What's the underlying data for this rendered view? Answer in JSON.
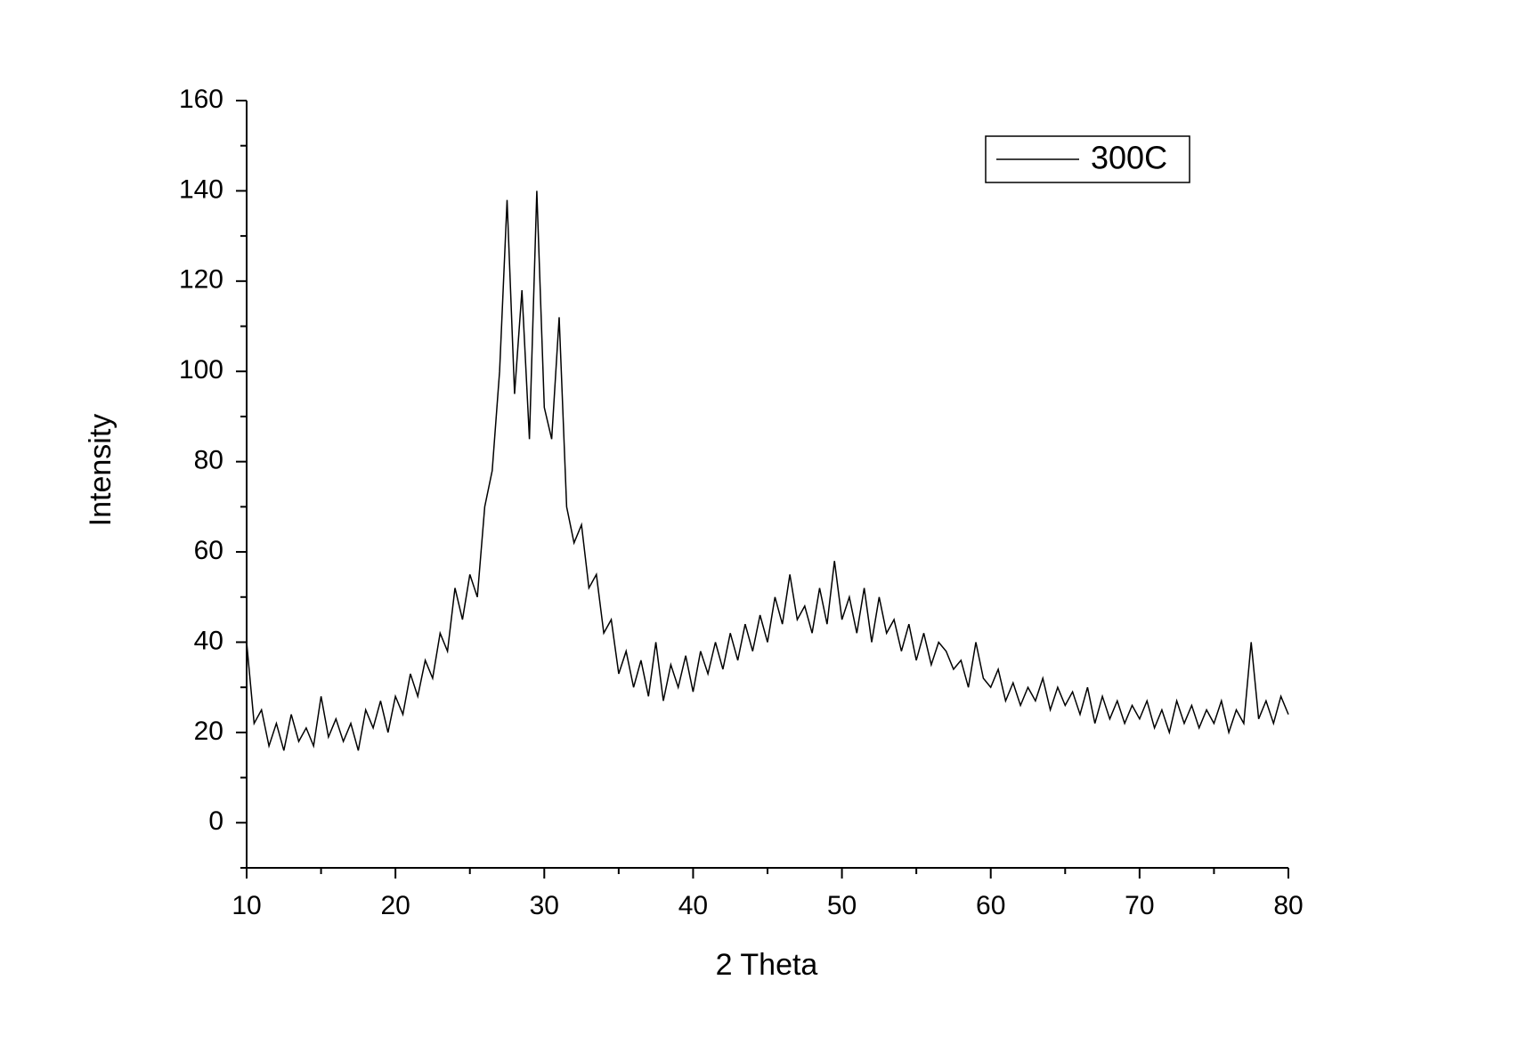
{
  "chart_data": {
    "type": "line",
    "xlabel": "2 Theta",
    "ylabel": "Intensity",
    "xlim": [
      10,
      80
    ],
    "ylim": [
      -10,
      160
    ],
    "xticks": [
      10,
      20,
      30,
      40,
      50,
      60,
      70,
      80
    ],
    "xminorticks": [
      15,
      25,
      35,
      45,
      55,
      65,
      75
    ],
    "yticks": [
      0,
      20,
      40,
      60,
      80,
      100,
      120,
      140,
      160
    ],
    "yminorticks": [
      -10,
      10,
      30,
      50,
      70,
      90,
      110,
      130,
      150
    ],
    "grid": false,
    "legend": "upper right",
    "x": [
      10,
      10.5,
      11,
      11.5,
      12,
      12.5,
      13,
      13.5,
      14,
      14.5,
      15,
      15.5,
      16,
      16.5,
      17,
      17.5,
      18,
      18.5,
      19,
      19.5,
      20,
      20.5,
      21,
      21.5,
      22,
      22.5,
      23,
      23.5,
      24,
      24.5,
      25,
      25.5,
      26,
      26.5,
      27,
      27.5,
      28,
      28.5,
      29,
      29.5,
      30,
      30.5,
      31,
      31.5,
      32,
      32.5,
      33,
      33.5,
      34,
      34.5,
      35,
      35.5,
      36,
      36.5,
      37,
      37.5,
      38,
      38.5,
      39,
      39.5,
      40,
      40.5,
      41,
      41.5,
      42,
      42.5,
      43,
      43.5,
      44,
      44.5,
      45,
      45.5,
      46,
      46.5,
      47,
      47.5,
      48,
      48.5,
      49,
      49.5,
      50,
      50.5,
      51,
      51.5,
      52,
      52.5,
      53,
      53.5,
      54,
      54.5,
      55,
      55.5,
      56,
      56.5,
      57,
      57.5,
      58,
      58.5,
      59,
      59.5,
      60,
      60.5,
      61,
      61.5,
      62,
      62.5,
      63,
      63.5,
      64,
      64.5,
      65,
      65.5,
      66,
      66.5,
      67,
      67.5,
      68,
      68.5,
      69,
      69.5,
      70,
      70.5,
      71,
      71.5,
      72,
      72.5,
      73,
      73.5,
      74,
      74.5,
      75,
      75.5,
      76,
      76.5,
      77,
      77.5,
      78,
      78.5,
      79,
      79.5,
      80
    ],
    "series": [
      {
        "name": "300C",
        "color": "#000000",
        "values": [
          40,
          22,
          25,
          17,
          22,
          16,
          24,
          18,
          21,
          17,
          28,
          19,
          23,
          18,
          22,
          16,
          25,
          21,
          27,
          20,
          28,
          24,
          33,
          28,
          36,
          32,
          42,
          38,
          52,
          45,
          55,
          50,
          70,
          78,
          100,
          138,
          95,
          118,
          85,
          140,
          92,
          85,
          112,
          70,
          62,
          66,
          52,
          55,
          42,
          45,
          33,
          38,
          30,
          36,
          28,
          40,
          27,
          35,
          30,
          37,
          29,
          38,
          33,
          40,
          34,
          42,
          36,
          44,
          38,
          46,
          40,
          50,
          44,
          55,
          45,
          48,
          42,
          52,
          44,
          58,
          45,
          50,
          42,
          52,
          40,
          50,
          42,
          45,
          38,
          44,
          36,
          42,
          35,
          40,
          38,
          34,
          36,
          30,
          40,
          32,
          30,
          34,
          27,
          31,
          26,
          30,
          27,
          32,
          25,
          30,
          26,
          29,
          24,
          30,
          22,
          28,
          23,
          27,
          22,
          26,
          23,
          27,
          21,
          25,
          20,
          27,
          22,
          26,
          21,
          25,
          22,
          27,
          20,
          25,
          22,
          40,
          23,
          27,
          22,
          28,
          24
        ]
      }
    ]
  }
}
